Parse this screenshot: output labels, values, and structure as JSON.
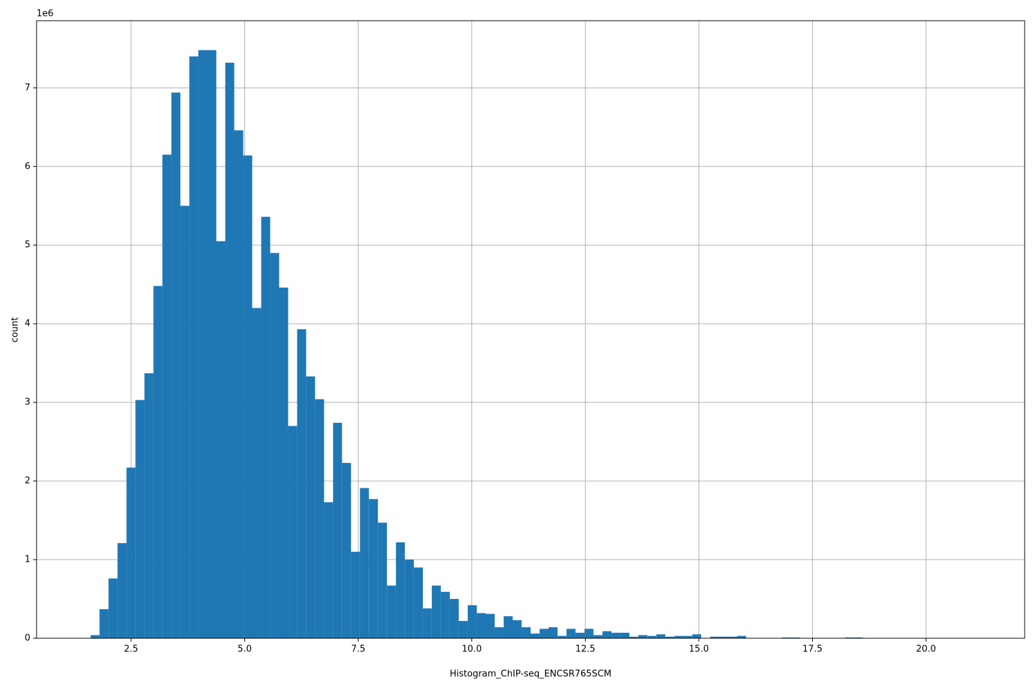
{
  "chart_data": {
    "type": "histogram",
    "x_label": "Histogram_ChIP-seq_ENCSR765SCM",
    "y_label": "count",
    "y_offset_label": "1e6",
    "color": "#1f77b4",
    "grid": true,
    "bins": [
      1.41,
      1.608,
      1.805,
      2.003,
      2.201,
      2.399,
      2.596,
      2.794,
      2.992,
      3.189,
      3.387,
      3.585,
      3.782,
      3.98,
      4.178,
      4.376,
      4.573,
      4.771,
      4.969,
      5.166,
      5.364,
      5.562,
      5.759,
      5.957,
      6.155,
      6.353,
      6.55,
      6.748,
      6.946,
      7.143,
      7.341,
      7.539,
      7.736,
      7.934,
      8.132,
      8.33,
      8.527,
      8.725,
      8.923,
      9.12,
      9.318,
      9.516,
      9.713,
      9.911,
      10.109,
      10.307,
      10.504,
      10.702,
      10.9,
      11.097,
      11.295,
      11.493,
      11.69,
      11.888,
      12.086,
      12.284,
      12.481,
      12.679,
      12.877,
      13.074,
      13.272,
      13.47,
      13.667,
      13.865,
      14.063,
      14.261,
      14.458,
      14.656,
      14.854,
      15.051,
      15.249,
      15.447,
      15.644,
      15.842,
      16.04,
      16.238,
      16.435,
      16.633,
      16.831,
      17.028,
      17.226,
      17.424,
      17.621,
      17.819,
      18.017,
      18.215,
      18.412,
      18.61,
      18.808,
      19.005,
      19.203,
      19.401,
      19.598,
      19.796,
      19.994,
      20.192,
      20.389,
      20.587,
      20.785,
      20.982,
      21.18
    ],
    "values": [
      0,
      40000,
      370000,
      760000,
      1210000,
      2170000,
      3030000,
      3370000,
      4480000,
      6150000,
      6940000,
      5500000,
      7400000,
      7480000,
      7480000,
      5050000,
      7320000,
      6460000,
      6140000,
      4200000,
      5360000,
      4900000,
      4460000,
      2700000,
      3930000,
      3330000,
      3040000,
      1730000,
      2740000,
      2230000,
      1100000,
      1910000,
      1770000,
      1470000,
      670000,
      1220000,
      1000000,
      900000,
      380000,
      670000,
      590000,
      500000,
      220000,
      420000,
      320000,
      310000,
      140000,
      280000,
      230000,
      140000,
      60000,
      120000,
      140000,
      30000,
      120000,
      70000,
      120000,
      40000,
      90000,
      70000,
      70000,
      20000,
      40000,
      30000,
      50000,
      20000,
      30000,
      30000,
      50000,
      0,
      20000,
      20000,
      20000,
      30000,
      0,
      0,
      0,
      0,
      10000,
      10000,
      0,
      0,
      0,
      0,
      0,
      10000,
      10000,
      0,
      0,
      0,
      0,
      0,
      0,
      0,
      0,
      0,
      0,
      0,
      0,
      0
    ],
    "xlim": [
      0.419,
      22.171
    ],
    "ylim": [
      0,
      7854000
    ],
    "xticks": [
      2.5,
      {
        "value": 5,
        "label": "5.0"
      },
      7.5,
      {
        "value": 10,
        "label": "10.0"
      },
      12.5,
      {
        "value": 15,
        "label": "15.0"
      },
      17.5,
      {
        "value": 20,
        "label": "20.0"
      }
    ],
    "yticks": [
      0,
      {
        "value": 1000000,
        "label": "1"
      },
      {
        "value": 2000000,
        "label": "2"
      },
      {
        "value": 3000000,
        "label": "3"
      },
      {
        "value": 4000000,
        "label": "4"
      },
      {
        "value": 5000000,
        "label": "5"
      },
      {
        "value": 6000000,
        "label": "6"
      },
      {
        "value": 7000000,
        "label": "7"
      }
    ]
  }
}
